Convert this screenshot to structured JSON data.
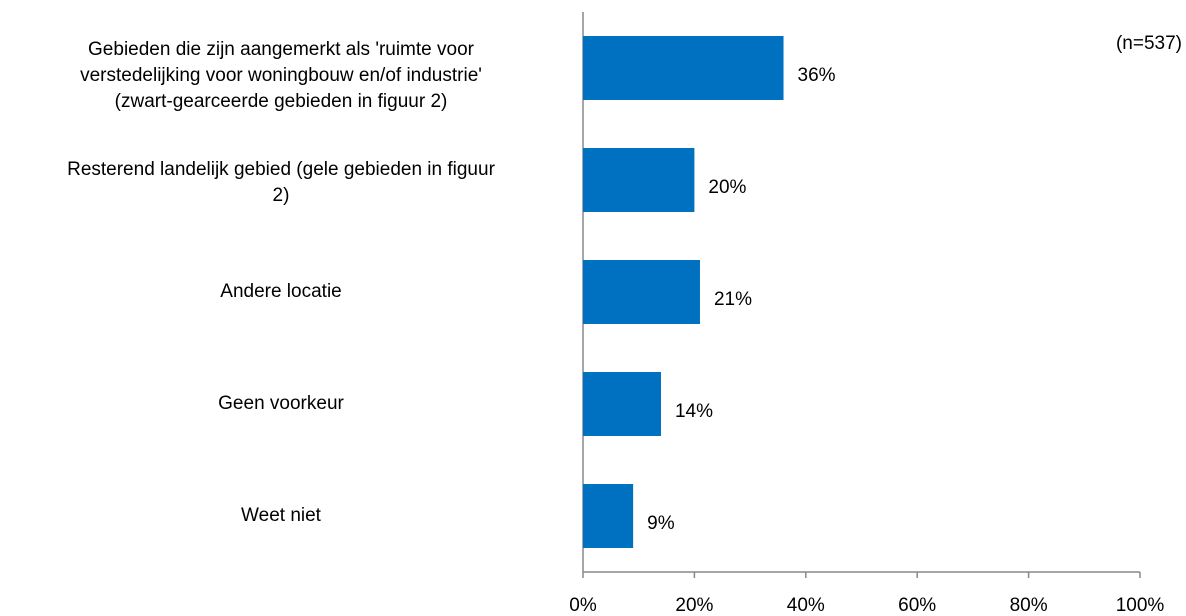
{
  "chart_data": {
    "type": "bar",
    "orientation": "horizontal",
    "annotation": "(n=537)",
    "categories": [
      "Gebieden die zijn aangemerkt als 'ruimte voor\nverstedelijking voor woningbouw en/of industrie'\n(zwart-gearceerde gebieden in figuur 2)",
      "Resterend landelijk gebied (gele gebieden in figuur\n2)",
      "Andere locatie",
      "Geen voorkeur",
      "Weet niet"
    ],
    "values": [
      36,
      20,
      21,
      14,
      9
    ],
    "value_labels": [
      "36%",
      "20%",
      "21%",
      "14%",
      "9%"
    ],
    "color": "#0070c0",
    "xlim": [
      0,
      100
    ],
    "xticks": [
      {
        "value": 0,
        "label": "0%"
      },
      {
        "value": 20,
        "label": "20%"
      },
      {
        "value": 40,
        "label": "40%"
      },
      {
        "value": 60,
        "label": "60%"
      },
      {
        "value": 80,
        "label": "80%"
      },
      {
        "value": 100,
        "label": "100%"
      }
    ],
    "grid": false
  }
}
